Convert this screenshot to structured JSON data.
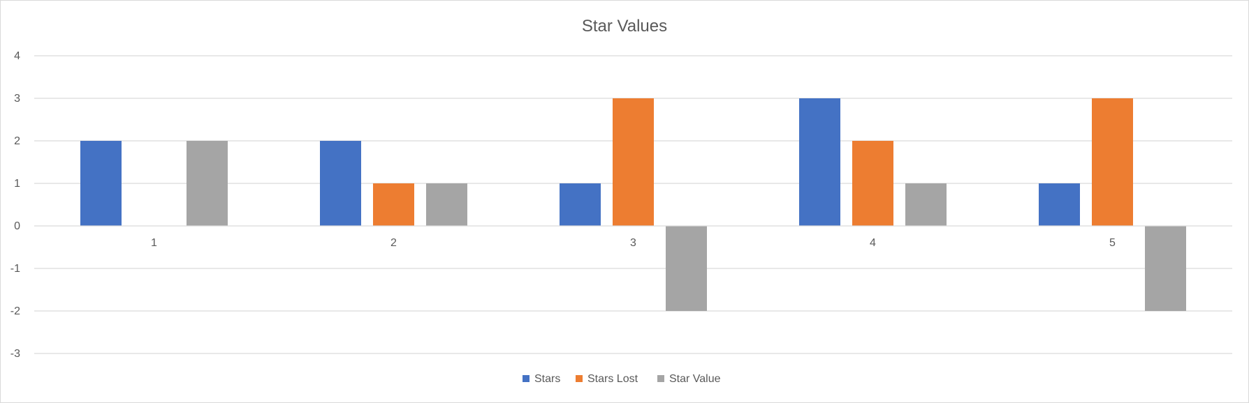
{
  "chart_data": {
    "type": "bar",
    "title": "Star Values",
    "categories": [
      "1",
      "2",
      "3",
      "4",
      "5"
    ],
    "series": [
      {
        "name": "Stars",
        "values": [
          2,
          2,
          1,
          3,
          1
        ],
        "color": "#4472C4"
      },
      {
        "name": "Stars Lost",
        "values": [
          0,
          1,
          3,
          2,
          3
        ],
        "color": "#ED7D31"
      },
      {
        "name": "Star Value",
        "values": [
          2,
          1,
          -2,
          1,
          -2
        ],
        "color": "#A5A5A5"
      }
    ],
    "ylim": [
      -3,
      4
    ],
    "yticks": [
      -3,
      -2,
      -1,
      0,
      1,
      2,
      3,
      4
    ],
    "xlabel": "",
    "ylabel": "",
    "grid": true,
    "legend_position": "bottom",
    "gridline_color": "#D9D9D9",
    "text_color": "#595959"
  }
}
